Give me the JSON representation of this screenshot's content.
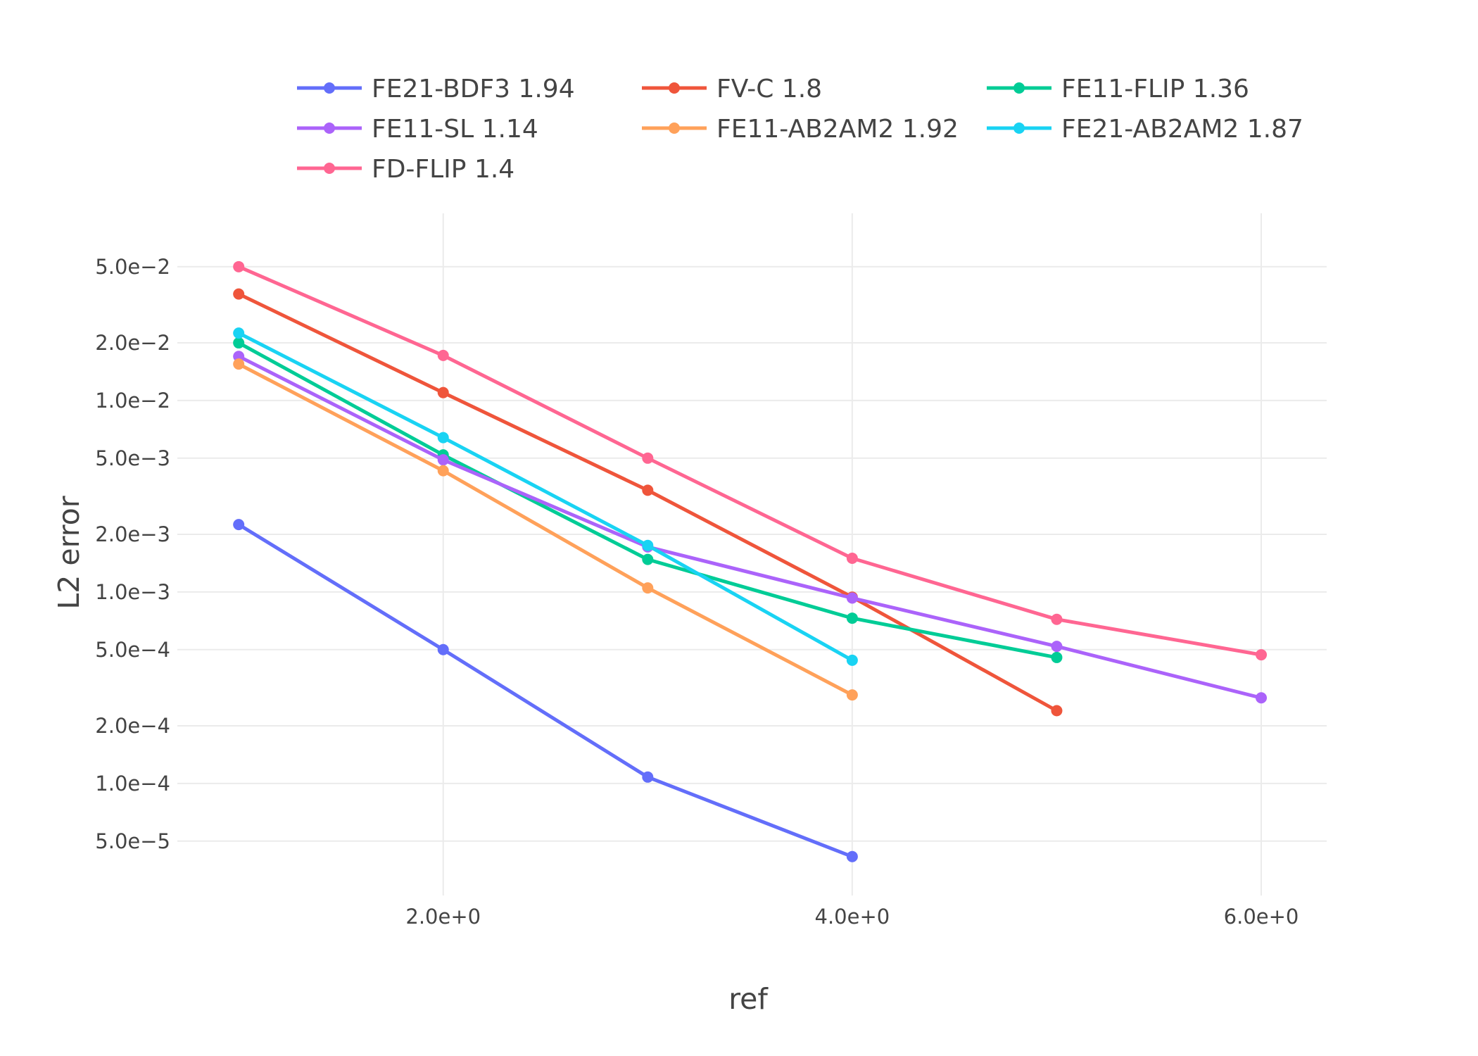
{
  "chart_data": {
    "type": "line",
    "title": "",
    "xlabel": "ref",
    "ylabel": "L2 error",
    "xscale": "linear",
    "yscale": "log",
    "xlim": [
      0.7,
      6.32
    ],
    "ylim": [
      2.6e-05,
      0.095
    ],
    "grid": true,
    "legend_position": "top",
    "x_ticks": [
      {
        "value": 2,
        "label": "2.0e+0"
      },
      {
        "value": 4,
        "label": "4.0e+0"
      },
      {
        "value": 6,
        "label": "6.0e+0"
      }
    ],
    "y_ticks": [
      {
        "value": 0.05,
        "label": "5.0e−2"
      },
      {
        "value": 0.02,
        "label": "2.0e−2"
      },
      {
        "value": 0.01,
        "label": "1.0e−2"
      },
      {
        "value": 0.005,
        "label": "5.0e−3"
      },
      {
        "value": 0.002,
        "label": "2.0e−3"
      },
      {
        "value": 0.001,
        "label": "1.0e−3"
      },
      {
        "value": 0.0005,
        "label": "5.0e−4"
      },
      {
        "value": 0.0002,
        "label": "2.0e−4"
      },
      {
        "value": 0.0001,
        "label": "1.0e−4"
      },
      {
        "value": 5e-05,
        "label": "5.0e−5"
      }
    ],
    "series": [
      {
        "name": "FE21-BDF3 1.94",
        "color": "#636efa",
        "x": [
          1,
          2,
          3,
          4
        ],
        "y": [
          0.00225,
          0.0005,
          0.000108,
          4.15e-05
        ]
      },
      {
        "name": "FV-C 1.8",
        "color": "#ef553b",
        "x": [
          1,
          2,
          3,
          4,
          5
        ],
        "y": [
          0.036,
          0.011,
          0.0034,
          0.00094,
          0.00024
        ]
      },
      {
        "name": "FE11-FLIP 1.36",
        "color": "#00cc96",
        "x": [
          1,
          2,
          3,
          4,
          5
        ],
        "y": [
          0.02,
          0.0052,
          0.00148,
          0.00073,
          0.000455
        ]
      },
      {
        "name": "FE11-SL 1.14",
        "color": "#ab63fa",
        "x": [
          1,
          2,
          3,
          4,
          5,
          6
        ],
        "y": [
          0.017,
          0.0049,
          0.00172,
          0.00093,
          0.00052,
          0.00028
        ]
      },
      {
        "name": "FE11-AB2AM2 1.92",
        "color": "#ffa15a",
        "x": [
          1,
          2,
          3,
          4
        ],
        "y": [
          0.0155,
          0.0043,
          0.00105,
          0.00029
        ]
      },
      {
        "name": "FE21-AB2AM2 1.87",
        "color": "#19d3f3",
        "x": [
          1,
          2,
          3,
          4
        ],
        "y": [
          0.0225,
          0.0064,
          0.00175,
          0.00044
        ]
      },
      {
        "name": "FD-FLIP 1.4",
        "color": "#ff6692",
        "x": [
          1,
          2,
          3,
          4,
          5,
          6
        ],
        "y": [
          0.05,
          0.0172,
          0.005,
          0.0015,
          0.00072,
          0.00047
        ]
      }
    ]
  }
}
